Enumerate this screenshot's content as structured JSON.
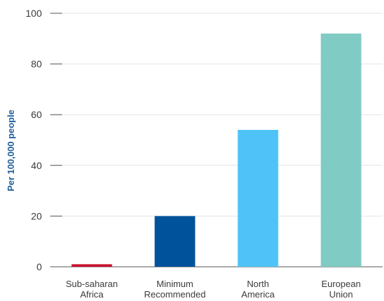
{
  "chart_data": {
    "type": "bar",
    "categories": [
      [
        "Sub-saharan",
        "Africa"
      ],
      [
        "Minimum",
        "Recommended"
      ],
      [
        "North",
        "America"
      ],
      [
        "European",
        "Union"
      ]
    ],
    "values": [
      1,
      20,
      54,
      92
    ],
    "bar_colors": [
      "#c8102e",
      "#00539b",
      "#4fc3f7",
      "#80cbc4"
    ],
    "title": "",
    "xlabel": "",
    "ylabel": "Per 100,000 people",
    "ylabel_color": "#1f5c99",
    "ylim": [
      0,
      100
    ],
    "yticks": [
      0,
      20,
      40,
      60,
      80,
      100
    ],
    "grid": true
  }
}
